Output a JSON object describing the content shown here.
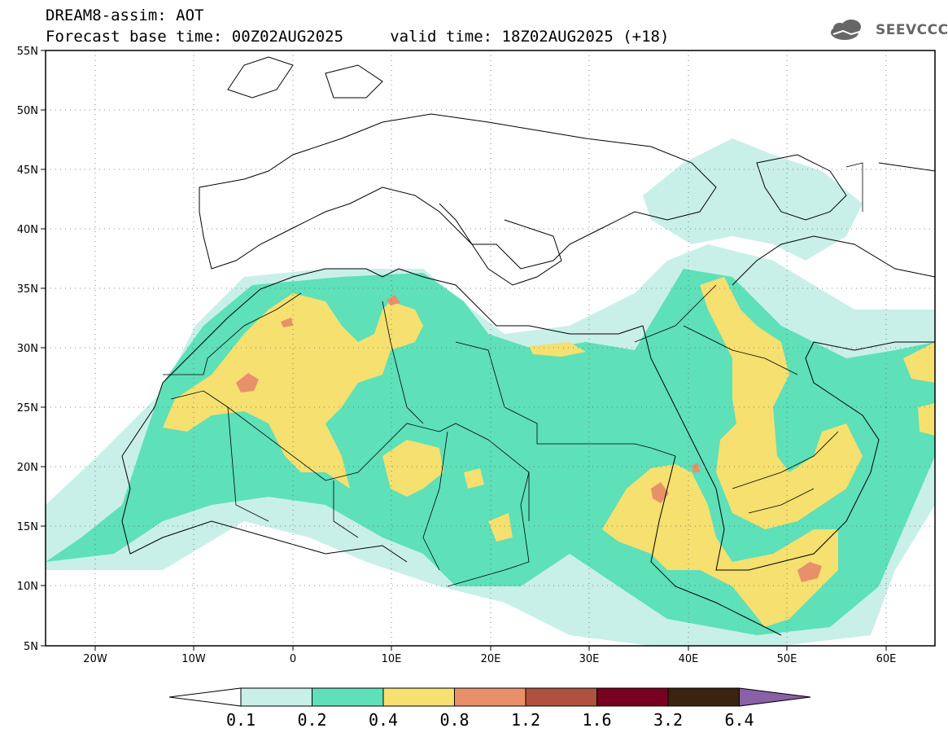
{
  "header": {
    "line1": "DREAM8-assim: AOT",
    "line2": "Forecast base time: 00Z02AUG2025     valid time: 18Z02AUG2025 (+18)"
  },
  "logo": {
    "text": "SEEVCCC",
    "icon": "cloud-logo-icon"
  },
  "map": {
    "y_axis_labels": [
      "55N",
      "50N",
      "45N",
      "40N",
      "35N",
      "30N",
      "25N",
      "20N",
      "15N",
      "10N",
      "5N"
    ],
    "x_axis_labels": [
      "20W",
      "10W",
      "0",
      "10E",
      "20E",
      "30E",
      "40E",
      "50E",
      "60E"
    ]
  },
  "colorbar": {
    "labels": [
      "0.1",
      "0.2",
      "0.4",
      "0.8",
      "1.2",
      "1.6",
      "3.2",
      "6.4"
    ],
    "colors": [
      "#ffffff",
      "#c8f0e8",
      "#5ee0b8",
      "#f5e070",
      "#e8906a",
      "#b05040",
      "#780020",
      "#3a2410",
      "#8a60a8"
    ]
  },
  "legend_colors": {
    "c1": "#c8f0e8",
    "c2": "#5ee0b8",
    "c3": "#f5e070",
    "c4": "#e8906a"
  }
}
